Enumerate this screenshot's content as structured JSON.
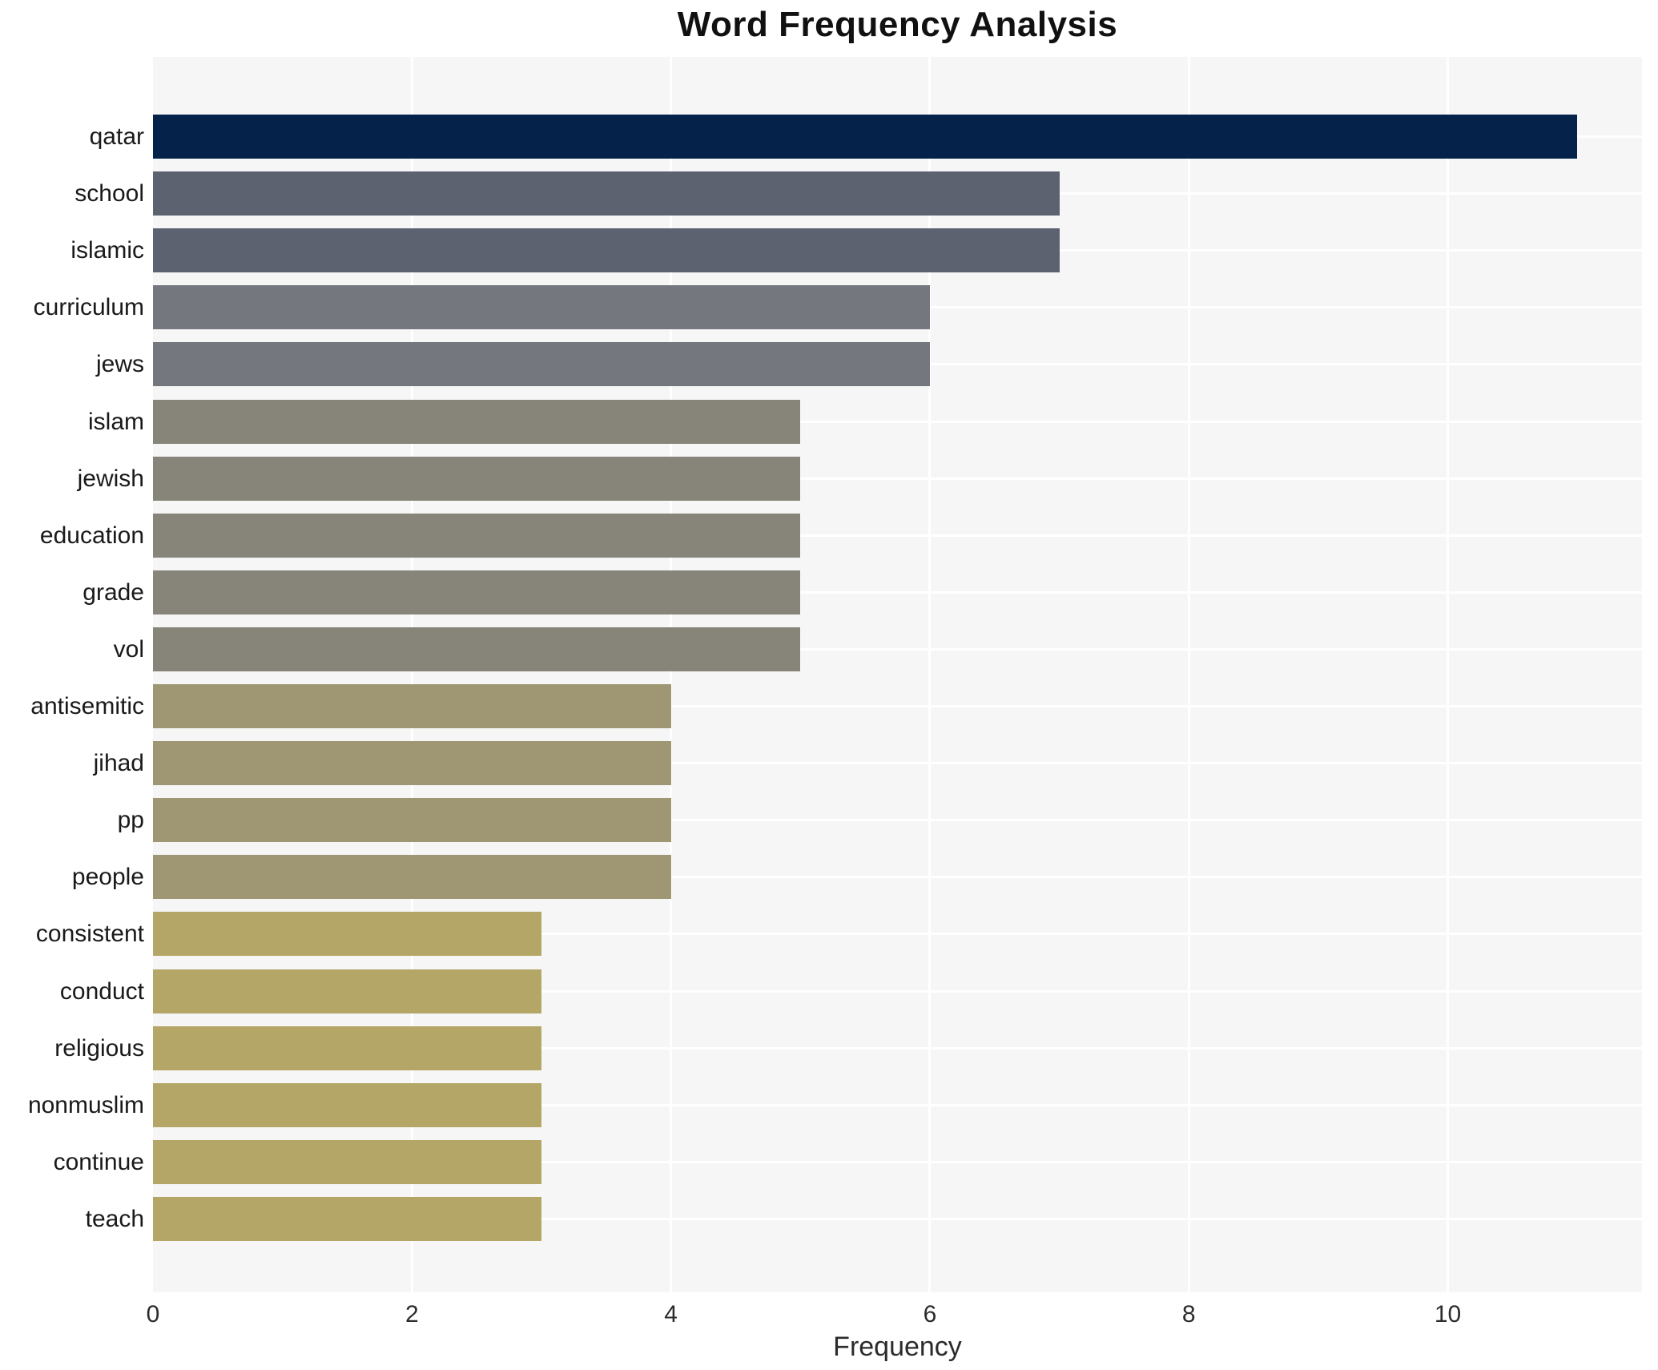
{
  "figure": {
    "background_color": "#ffffff"
  },
  "chart_data": {
    "type": "bar",
    "orientation": "horizontal",
    "title": "Word Frequency Analysis",
    "xlabel": "Frequency",
    "ylabel": "",
    "categories": [
      "qatar",
      "school",
      "islamic",
      "curriculum",
      "jews",
      "islam",
      "jewish",
      "education",
      "grade",
      "vol",
      "antisemitic",
      "jihad",
      "pp",
      "people",
      "consistent",
      "conduct",
      "religious",
      "nonmuslim",
      "continue",
      "teach"
    ],
    "values": [
      11,
      7,
      7,
      6,
      6,
      5,
      5,
      5,
      5,
      5,
      4,
      4,
      4,
      4,
      3,
      3,
      3,
      3,
      3,
      3
    ],
    "bar_colors": [
      "#04224a",
      "#5c6270",
      "#5c6270",
      "#75777e",
      "#75777e",
      "#87857a",
      "#87857a",
      "#87857a",
      "#87857a",
      "#87857a",
      "#9f9774",
      "#9f9774",
      "#9f9774",
      "#9f9774",
      "#b3a666",
      "#b3a666",
      "#b3a666",
      "#b3a666",
      "#b3a666",
      "#b3a666"
    ],
    "xlim": [
      0,
      11.5
    ],
    "xticks": [
      0,
      2,
      4,
      6,
      8,
      10
    ],
    "grid": true,
    "legend_position": "none",
    "plot_background_color": "#f6f6f7",
    "gridline_color": "#ffffff"
  }
}
